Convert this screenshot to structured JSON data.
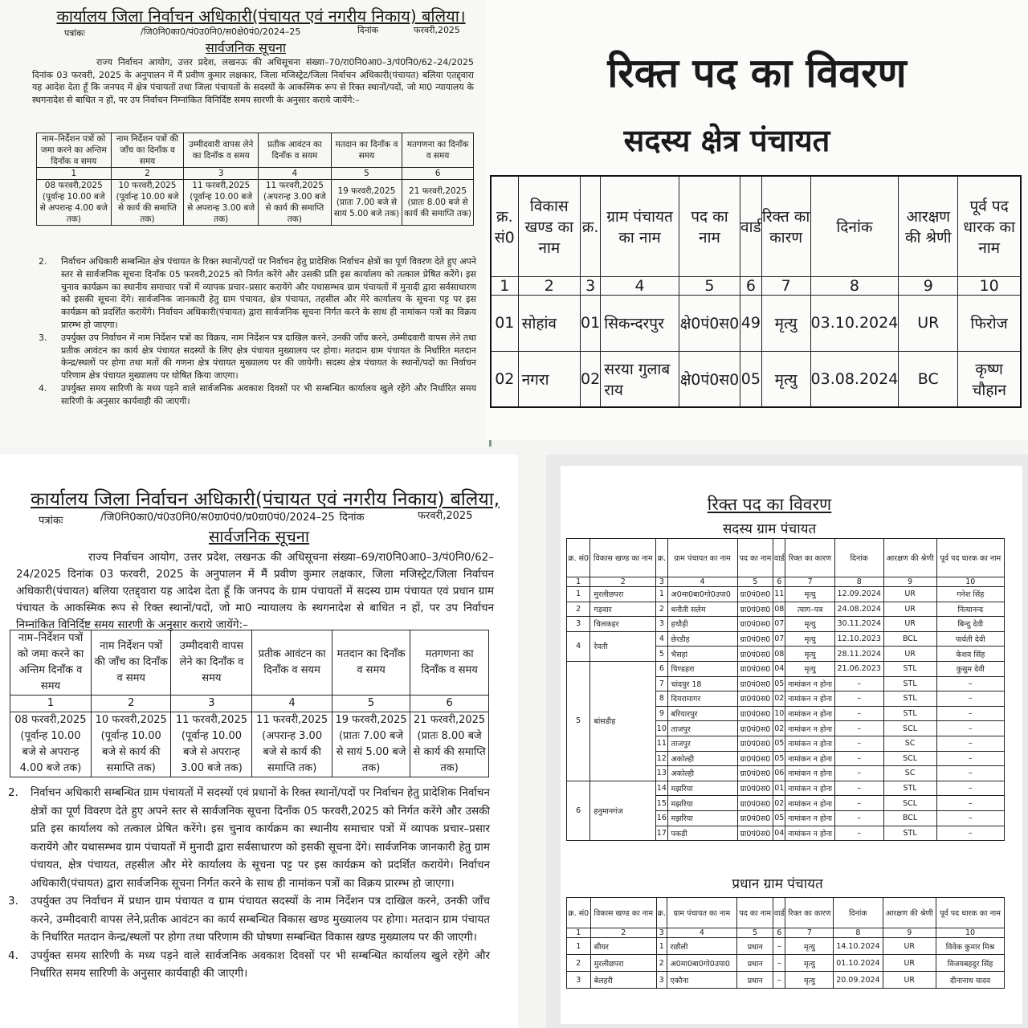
{
  "schedule": {
    "headers": [
      "नाम–निर्देशन पत्रों को जमा करने का अन्तिम दिनाँक व समय",
      "नाम निर्देशन पत्रों की जाँच का दिनाँक व समय",
      "उम्मीदवारी वापस लेने का दिनाँक व समय",
      "प्रतीक आवंटन का दिनाँक व सयम",
      "मतदान का दिनाँक व समय",
      "मतगणना का दिनाँक व समय"
    ],
    "numbers": [
      "1",
      "2",
      "3",
      "4",
      "5",
      "6"
    ],
    "values": [
      "08 फरवरी,2025 (पूर्वान्ह 10.00 बजे से अपरान्ह 4.00 बजे तक)",
      "10 फरवरी,2025 (पूर्वान्ह 10.00 बजे से कार्य की समाप्ति तक)",
      "11 फरवरी,2025 (पूर्वान्ह 10.00 बजे से अपरान्ह 3.00 बजे तक)",
      "11 फरवरी,2025 (अपरान्ह 3.00 बजे से कार्य की समाप्ति तक)",
      "19 फरवरी,2025 (प्रातः 7.00 बजे से सायं 5.00 बजे तक)",
      "21 फरवरी,2025 (प्रातः 8.00 बजे से कार्य की समाप्ति तक)"
    ]
  },
  "notice_kshetra": {
    "office_title": "कार्यालय जिला निर्वाचन अधिकारी(पंचायत एवं नगरीय निकाय) बलिया।",
    "letter_label": "पत्रांकः",
    "letter_ref": "/जि0नि0का0/पं0उ0नि0/स0क्षे0पं0/2024–25",
    "date_label": "दिनांक",
    "date_value": "फरवरी,2025",
    "heading": "सार्वजनिक सूचना",
    "intro": "राज्य निर्वाचन आयोग, उत्तर प्रदेश, लखनऊ की अधिसूचना संख्या–70/रा0नि0आ0–3/पं0नि0/62–24/2025 दिनांक 03 फरवरी, 2025 के अनुपालन में मैं प्रवीण कुमार लक्षकार, जिला मजिस्ट्रेट/जिला निर्वाचन अधिकारी(पंचायत) बलिया एतद्द्वारा यह आदेश देता हूँ कि जनपद में क्षेत्र पंचायतों तथा जिला पंचायतों के सदस्यों के आकस्मिक रूप से रिक्त स्थानों/पदों, जो मा0 न्यायालय के स्थगनादेश से बाधित न हों, पर उप निर्वाचन निम्नांकित विनिर्दिष्ट समय सारणी के अनुसार कराये जायेंगे:–",
    "points": [
      {
        "num": "2.",
        "text": "निर्वाचन अधिकारी सम्बन्धित क्षेत्र पंचायत के रिक्त स्थानों/पदों पर निर्वाचन हेतु प्रादेशिक निर्वाचन क्षेत्रों का पूर्ण विवरण देते हुए अपने स्तर से सार्वजनिक सूचना दिनाँक 05 फरवरी,2025 को निर्गत करेंगे और उसकी प्रति इस कार्यालय को तत्काल प्रेषित करेंगे। इस चुनाव कार्यक्रम का स्थानीय समाचार पत्रों में व्यापक प्रचार–प्रसार करायेंगे और यथासम्भव ग्राम पंचायतों में मुनादी द्वारा सर्वसाधारण को इसकी सूचना देंगे। सार्वजनिक जानकारी हेतु ग्राम पंचायत, क्षेत्र पंचायत, तहसील और मेरे कार्यालय के सूचना पट्ट पर इस कार्यक्रम को प्रदर्शित करायेंगे। निर्वाचन अधिकारी(पंचायत) द्वारा सार्वजनिक सूचना निर्गत करने के साथ ही नामांकन पत्रों का विक्रय प्रारम्भ हो जाएगा।"
      },
      {
        "num": "3.",
        "text": "उपर्युक्त उप निर्वाचन में नाम निर्देशन पत्रों का विक्रय, नाम निर्देशन पत्र दाखिल करने, उनकी जाँच करने, उम्मीदवारी वापस लेने तथा प्रतीक आवंटन का कार्य क्षेत्र पंचायत सदस्यों के लिए क्षेत्र पंचायत मुख्यालय पर होगा। मतदान ग्राम पंचायत के निर्धारित मतदान केन्द्र/स्थलों पर होगा तथा मतों की गणना क्षेत्र पंचायत मुख्यालय पर की जायेगी। सदस्य क्षेत्र पंचायत के स्थानों/पदों का निर्वाचन परिणाम क्षेत्र पंचायत मुख्यालय पर घोषित किया जाएगा।"
      },
      {
        "num": "4.",
        "text": "उपर्युक्त समय सारिणी के मध्य पड़ने वाले सार्वजनिक अवकाश दिवसों पर भी सम्बन्धित कार्यालय खुले रहेंगे और निर्धारित समय सारिणी के अनुसार कार्यवाही की जाएगी।"
      }
    ]
  },
  "notice_gram": {
    "office_title": "कार्यालय जिला निर्वाचन अधिकारी(पंचायत एवं नगरीय निकाय) बलिया,",
    "letter_label": "पत्रांकः",
    "letter_ref": "/जि0नि0का0/पं0उ0नि0/स0ग्रा0पं0/प्र0ग्रा0पं0/2024–25",
    "date_label": "दिनांक",
    "date_value": "फरवरी,2025",
    "heading": "सार्वजनिक सूचना",
    "intro": "राज्य निर्वाचन आयोग, उत्तर प्रदेश, लखनऊ की अधिसूचना संख्या–69/रा0नि0आ0–3/पं0नि0/62–24/2025 दिनांक 03 फरवरी, 2025 के अनुपालन में मैं प्रवीण कुमार लक्षकार, जिला मजिस्ट्रेट/जिला निर्वाचन अधिकारी(पंचायत) बलिया एतद्द्वारा यह आदेश देता हूँ कि जनपद के ग्राम पंचायतों में सदस्य ग्राम पंचायत एवं प्रधान ग्राम पंचायत के आकस्मिक रूप से रिक्त स्थानों/पदों, जो मा0 न्यायालय के स्थगनादेश से बाधित न हों, पर उप निर्वाचन निम्नांकित विनिर्दिष्ट समय सारणी के अनुसार कराये जायेंगे:–",
    "points": [
      {
        "num": "2.",
        "text": "निर्वाचन अधिकारी सम्बन्धित ग्राम पंचायतों में सदस्यों एवं प्रधानों के रिक्त स्थानों/पदों पर निर्वाचन हेतु प्रादेशिक निर्वाचन क्षेत्रों का पूर्ण विवरण देते हुए अपने स्तर से सार्वजनिक सूचना दिनाँक 05 फरवरी,2025 को निर्गत करेंगे और उसकी प्रति इस कार्यालय को तत्काल प्रेषित करेंगे। इस चुनाव कार्यक्रम का स्थानीय समाचार पत्रों में व्यापक प्रचार–प्रसार करायेंगे और यथासम्भव ग्राम पंचायतों में मुनादी द्वारा सर्वसाधारण को इसकी सूचना देंगे। सार्वजनिक जानकारी हेतु ग्राम पंचायत, क्षेत्र पंचायत, तहसील और मेरे कार्यालय के सूचना पट्ट पर इस कार्यक्रम को प्रदर्शित करायेंगे। निर्वाचन अधिकारी(पंचायत) द्वारा सार्वजनिक सूचना निर्गत करने के साथ ही नामांकन पत्रों का विक्रय प्रारम्भ हो जाएगा।"
      },
      {
        "num": "3.",
        "text": "उपर्युक्त उप निर्वाचन में प्रधान ग्राम पंचायत व ग्राम पंचायत सदस्यों के नाम निर्देशन पत्र दाखिल करने, उनकी जाँच करने, उम्मीदवारी वापस लेने,प्रतीक आवंटन का कार्य सम्बन्धित विकास खण्ड मुख्यालय पर होगा। मतदान ग्राम पंचायत के निर्धारित मतदान केन्द्र/स्थलों पर होगा तथा परिणाम की घोषणा सम्बन्धित विकास खण्ड मुख्यालय पर की जाएगी।"
      },
      {
        "num": "4.",
        "text": "उपर्युक्त समय सारिणी के मध्य पड़ने वाले सार्वजनिक अवकाश दिवसों पर भी सम्बन्धित कार्यालय खुले रहेंगे और निर्धारित समय सारिणी के अनुसार कार्यवाही की जाएगी।"
      }
    ]
  },
  "vacancy_headers": [
    "क्र. सं0",
    "विकास खण्ड का नाम",
    "क्र.",
    "ग्राम पंचायत का नाम",
    "पद का नाम",
    "वार्ड",
    "रिक्त का कारण",
    "दिनांक",
    "आरक्षण की श्रेणी",
    "पूर्व पद धारक का नाम"
  ],
  "vacancy_numbers": [
    "1",
    "2",
    "3",
    "4",
    "5",
    "6",
    "7",
    "8",
    "9",
    "10"
  ],
  "kshetra_vacancy": {
    "title": "रिक्त पद का विवरण",
    "subtitle": "सदस्य क्षेत्र पंचायत",
    "blocks": [
      {
        "sno": "01",
        "block": "सोहांव",
        "rows": [
          [
            "01",
            "सिकन्दरपुर",
            "क्षे0पं0स0",
            "49",
            "मृत्यु",
            "03.10.2024",
            "UR",
            "फिरोज"
          ]
        ]
      },
      {
        "sno": "02",
        "block": "नगरा",
        "rows": [
          [
            "02",
            "सरया गुलाब राय",
            "क्षे0पं0स0",
            "05",
            "मृत्यु",
            "03.08.2024",
            "BC",
            "कृष्ण चौहान"
          ]
        ]
      }
    ]
  },
  "gram_vacancy": {
    "title": "रिक्त पद का विवरण",
    "subtitle": "सदस्य ग्राम पंचायत",
    "blocks": [
      {
        "sno": "1",
        "block": "मुरलीछपरा",
        "rows": [
          [
            "1",
            "अ0मा0बा0गो0उपा0",
            "ग्रा0पं0स0",
            "11",
            "मृत्यु",
            "12.09.2024",
            "UR",
            "गनेश सिंह"
          ]
        ]
      },
      {
        "sno": "2",
        "block": "गड़वार",
        "rows": [
          [
            "2",
            "धनौती सलेम",
            "ग्रा0पं0स0",
            "08",
            "त्याग–पत्र",
            "24.08.2024",
            "UR",
            "नित्यानन्द"
          ]
        ]
      },
      {
        "sno": "3",
        "block": "चिलकहर",
        "rows": [
          [
            "3",
            "हथौड़ी",
            "ग्रा0पं0स0",
            "07",
            "मृत्यु",
            "30.11.2024",
            "UR",
            "बिन्दु देवी"
          ]
        ]
      },
      {
        "sno": "4",
        "block": "रेवती",
        "rows": [
          [
            "4",
            "छेरडीह",
            "ग्रा0पं0स0",
            "07",
            "मृत्यु",
            "12.10.2023",
            "BCL",
            "पार्वती देवी"
          ],
          [
            "5",
            "भैसहां",
            "ग्रा0पं0स0",
            "08",
            "मृत्यु",
            "28.11.2024",
            "UR",
            "केशव सिंह"
          ]
        ]
      },
      {
        "sno": "5",
        "block": "बांसडीह",
        "rows": [
          [
            "6",
            "पिण्डहरा",
            "ग्रा0पं0स0",
            "04",
            "मृत्यु",
            "21.06.2023",
            "STL",
            "कुसुम देवी"
          ],
          [
            "7",
            "चांदपुर 18",
            "ग्रा0पं0स0",
            "05",
            "नामांकन न होना",
            "–",
            "STL",
            "–"
          ],
          [
            "8",
            "दियरामागर",
            "ग्रा0पं0स0",
            "02",
            "नामांकन न होना",
            "–",
            "STL",
            "–"
          ],
          [
            "9",
            "बरियारपुर",
            "ग्रा0पं0स0",
            "10",
            "नामांकन न होना",
            "–",
            "STL",
            "–"
          ],
          [
            "10",
            "ताजपुर",
            "ग्रा0पं0स0",
            "02",
            "नामांकन न होना",
            "–",
            "SCL",
            "–"
          ],
          [
            "11",
            "ताजपुर",
            "ग्रा0पं0स0",
            "05",
            "नामांकन न होना",
            "–",
            "SC",
            "–"
          ],
          [
            "12",
            "अकोल्ही",
            "ग्रा0पं0स0",
            "05",
            "नामांकन न होना",
            "–",
            "SCL",
            "–"
          ],
          [
            "13",
            "अकोल्ही",
            "ग्रा0पं0स0",
            "06",
            "नामांकन न होना",
            "–",
            "SC",
            "–"
          ]
        ]
      },
      {
        "sno": "6",
        "block": "हनुमानगंज",
        "rows": [
          [
            "14",
            "मझरिया",
            "ग्रा0पं0स0",
            "01",
            "नामांकन न होना",
            "–",
            "STL",
            "–"
          ],
          [
            "15",
            "मझरिया",
            "ग्रा0पं0स0",
            "02",
            "नामांकन न होना",
            "–",
            "SCL",
            "–"
          ],
          [
            "16",
            "मझरिया",
            "ग्रा0पं0स0",
            "05",
            "नामांकन न होना",
            "–",
            "BCL",
            "–"
          ],
          [
            "17",
            "पकड़ी",
            "ग्रा0पं0स0",
            "04",
            "नामांकन न होना",
            "–",
            "STL",
            "–"
          ]
        ]
      }
    ]
  },
  "pradhan_vacancy": {
    "subtitle": "प्रधान ग्राम पंचायत",
    "blocks": [
      {
        "sno": "1",
        "block": "सीयर",
        "rows": [
          [
            "1",
            "रछौली",
            "प्रधान",
            "–",
            "मृत्यु",
            "14.10.2024",
            "UR",
            "विवेक कुमार मिश्र"
          ]
        ]
      },
      {
        "sno": "2",
        "block": "मुरलीछपरा",
        "rows": [
          [
            "2",
            "अ0मा0बा0गो0उपा0",
            "प्रधान",
            "–",
            "मृत्यु",
            "01.10.2024",
            "UR",
            "विजयबहदुर सिंह"
          ]
        ]
      },
      {
        "sno": "3",
        "block": "बेलहरी",
        "rows": [
          [
            "3",
            "एकौना",
            "प्रधान",
            "–",
            "मृत्यु",
            "20.09.2024",
            "UR",
            "दीनानाथ यादव"
          ]
        ]
      }
    ]
  }
}
